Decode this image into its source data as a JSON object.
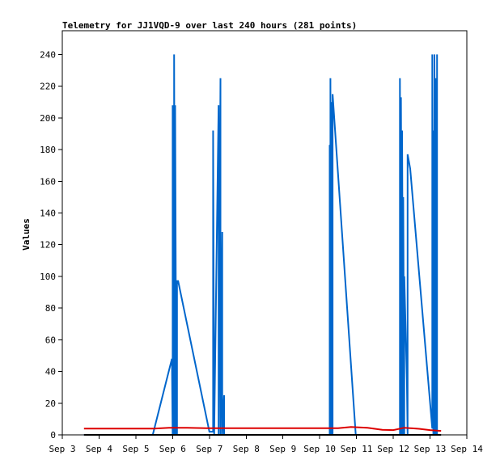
{
  "chart_data": {
    "type": "line",
    "title": "Telemetry for JJ1VQD-9 over last 240 hours (281 points)",
    "xlabel": "",
    "ylabel": "Values",
    "xlim": [
      "Sep 3",
      "Sep 14"
    ],
    "ylim": [
      0,
      255
    ],
    "xticks": [
      "Sep 3",
      "Sep 4",
      "Sep 5",
      "Sep 6",
      "Sep 7",
      "Sep 8",
      "Sep 9",
      "Sep 10",
      "Sep 11",
      "Sep 12",
      "Sep 13",
      "Sep 14"
    ],
    "yticks": [
      0,
      20,
      40,
      60,
      80,
      100,
      120,
      140,
      160,
      180,
      200,
      220,
      240
    ],
    "grid": false,
    "series": [
      {
        "color": "#0066cc",
        "x": [
          3.59,
          5.46,
          5.98,
          6.0,
          6.0,
          6.04,
          6.04,
          6.07,
          6.07,
          6.1,
          6.1,
          6.12,
          6.12,
          6.15,
          6.15,
          7.0,
          7.1,
          7.1,
          7.13,
          7.13,
          7.25,
          7.25,
          7.3,
          7.3,
          7.35,
          7.35,
          7.4,
          7.4,
          10.27,
          10.27,
          10.29,
          10.29,
          10.31,
          10.31,
          10.35,
          10.35,
          10.98,
          12.18,
          12.18,
          12.21,
          12.21,
          12.24,
          12.24,
          12.27,
          12.27,
          12.3,
          12.3,
          12.37,
          12.39,
          12.39,
          12.46,
          13.06,
          13.06,
          13.09,
          13.09,
          13.12,
          13.12,
          13.15,
          13.15,
          13.19,
          13.19
        ],
        "y": [
          0,
          0,
          48,
          0,
          208,
          0,
          240,
          0,
          208,
          0,
          0,
          0,
          97,
          97,
          97,
          2,
          2,
          192,
          0,
          0,
          208,
          0,
          225,
          0,
          128,
          0,
          25,
          0,
          0,
          183,
          0,
          225,
          0,
          210,
          0,
          215,
          0,
          0,
          225,
          0,
          213,
          0,
          192,
          0,
          150,
          0,
          100,
          35,
          0,
          177,
          168,
          4,
          240,
          0,
          192,
          0,
          240,
          0,
          225,
          0,
          240
        ]
      },
      {
        "color": "#dd0000",
        "x": [
          3.59,
          5.5,
          5.9,
          6.4,
          7.0,
          10.5,
          10.85,
          11.3,
          11.7,
          12.0,
          12.3,
          12.7,
          13.0,
          13.3
        ],
        "y": [
          4,
          4,
          4.5,
          4.5,
          4.2,
          4.2,
          5,
          4.5,
          3.2,
          3,
          4.5,
          3.8,
          3,
          2.5
        ]
      }
    ]
  }
}
